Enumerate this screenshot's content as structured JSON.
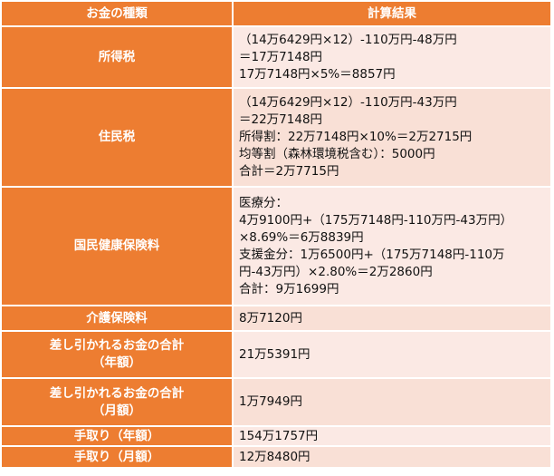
{
  "table": {
    "headers": [
      "お金の種類",
      "計算結果"
    ],
    "rows": [
      {
        "key": [
          "所得税"
        ],
        "value": [
          "（14万6429円×12）-110万円-48万円",
          "＝17万7148円",
          "17万7148円×5%＝8857円"
        ]
      },
      {
        "key": [
          "住民税"
        ],
        "value": [
          "（14万6429円×12）-110万円-43万円",
          "＝22万7148円",
          "所得割：22万7148円×10%＝2万2715円",
          "均等割（森林環境税含む）：5000円",
          "合計＝2万7715円"
        ]
      },
      {
        "key": [
          "国民健康保険料"
        ],
        "value": [
          "医療分：",
          "4万9100円+（175万7148円-110万円-43万円）",
          "×8.69%＝6万8839円",
          "支援金分：1万6500円+（175万7148円-110万",
          "円-43万円）×2.80%＝2万2860円",
          "合計：9万1699円"
        ]
      },
      {
        "key": [
          "介護保険料"
        ],
        "value": [
          "8万7120円"
        ]
      },
      {
        "key": [
          "差し引かれるお金の合計",
          "（年額）"
        ],
        "value": [
          "21万5391円"
        ]
      },
      {
        "key": [
          "差し引かれるお金の合計",
          "（月額）"
        ],
        "value": [
          "1万7949円"
        ]
      },
      {
        "key": [
          "手取り（年額）"
        ],
        "value": [
          "154万1757円"
        ]
      },
      {
        "key": [
          "手取り（月額）"
        ],
        "value": [
          "12万8480円"
        ]
      }
    ]
  },
  "colors": {
    "header_bg": "#ED7D31",
    "value_bg": "#FBE9E4",
    "header_text": "#FFFFFF"
  }
}
